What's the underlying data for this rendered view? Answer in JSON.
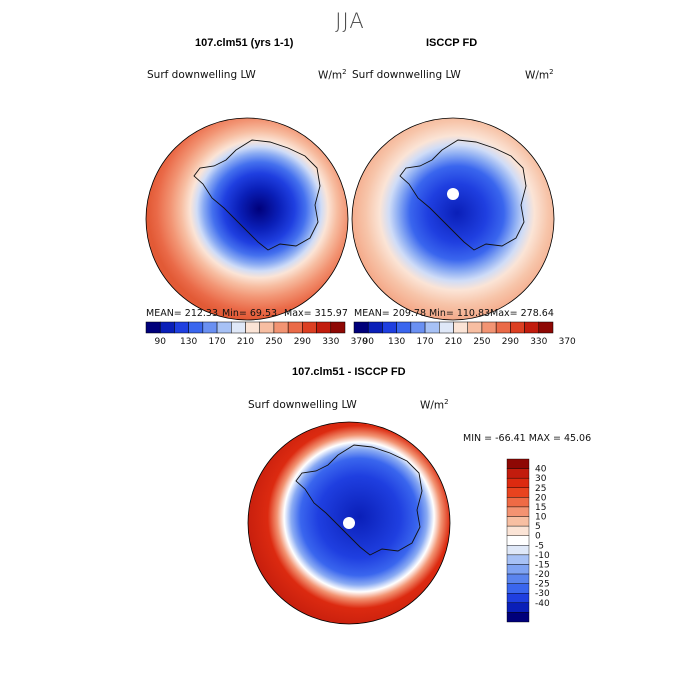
{
  "season": "JJA",
  "left_panel": {
    "title": "107.clm51 (yrs 1-1)",
    "variable": "Surf downwelling LW",
    "units": "W/m",
    "units_exp": "2",
    "mean_label": "MEAN= 212.33",
    "min_label": "Min=  69.53",
    "max_label": "Max= 315.97"
  },
  "right_panel": {
    "title": "ISCCP FD",
    "variable": "Surf downwelling LW",
    "units": "W/m",
    "units_exp": "2",
    "mean_label": "MEAN= 209.78",
    "min_label": "Min= 110.83",
    "max_label": "Max= 278.64"
  },
  "diff_panel": {
    "title": "107.clm51 - ISCCP FD",
    "variable": "Surf downwelling LW",
    "units": "W/m",
    "units_exp": "2",
    "minmax_label": "MIN = -66.41 MAX =  45.06"
  },
  "abs_colorbar": {
    "colors": [
      "#00007a",
      "#0a1fb8",
      "#1f3fe0",
      "#3a66ee",
      "#6a90f2",
      "#a7c1f5",
      "#dfe8f8",
      "#fbe4d6",
      "#f7bea2",
      "#f29473",
      "#ea6a48",
      "#dc3f22",
      "#c21c0d",
      "#8e0804"
    ],
    "tick_labels": [
      "90",
      "130",
      "170",
      "210",
      "250",
      "290",
      "330",
      "370"
    ]
  },
  "diff_colorbar": {
    "colors": [
      "#8e0804",
      "#c21c0d",
      "#dc2a10",
      "#e8431f",
      "#ef6a45",
      "#f39372",
      "#f7bfa2",
      "#fbe4d6",
      "#ffffff",
      "#dfe8f8",
      "#a7c1f5",
      "#7fa3f2",
      "#5a84ee",
      "#3a66ee",
      "#1f3fe0",
      "#0a1fb8",
      "#00007a"
    ],
    "tick_labels": [
      "40",
      "30",
      "25",
      "20",
      "15",
      "10",
      "5",
      "0",
      "-5",
      "-10",
      "-15",
      "-20",
      "-25",
      "-30",
      "-40"
    ]
  }
}
